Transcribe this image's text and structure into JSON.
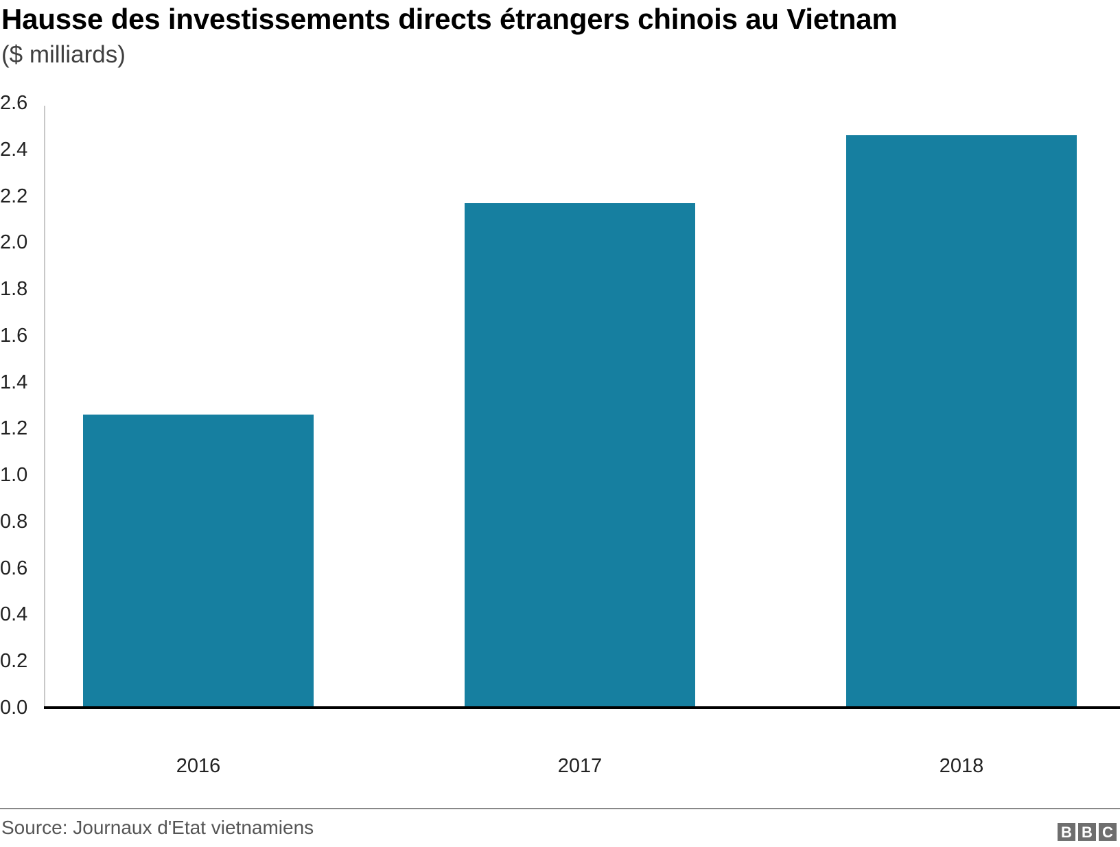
{
  "header": {
    "title": "Hausse des investissements directs étrangers chinois au Vietnam",
    "subtitle": "($ milliards)"
  },
  "footer": {
    "source": "Source: Journaux d'Etat vietnamiens",
    "logo": [
      "B",
      "B",
      "C"
    ]
  },
  "colors": {
    "bar": "#167fa0",
    "baseline": "#000000",
    "axis": "#c8c8c8"
  },
  "chart_data": {
    "type": "bar",
    "title": "Hausse des investissements directs étrangers chinois au Vietnam",
    "subtitle": "($ milliards)",
    "categories": [
      "2016",
      "2017",
      "2018"
    ],
    "values": [
      1.26,
      2.17,
      2.46
    ],
    "xlabel": "",
    "ylabel": "$ milliards",
    "ylim": [
      0,
      2.6
    ],
    "yticks": [
      "0.0",
      "0.2",
      "0.4",
      "0.6",
      "0.8",
      "1.0",
      "1.2",
      "1.4",
      "1.6",
      "1.8",
      "2.0",
      "2.2",
      "2.4",
      "2.6"
    ],
    "grid": false,
    "legend": null,
    "source": "Source: Journaux d'Etat vietnamiens"
  }
}
